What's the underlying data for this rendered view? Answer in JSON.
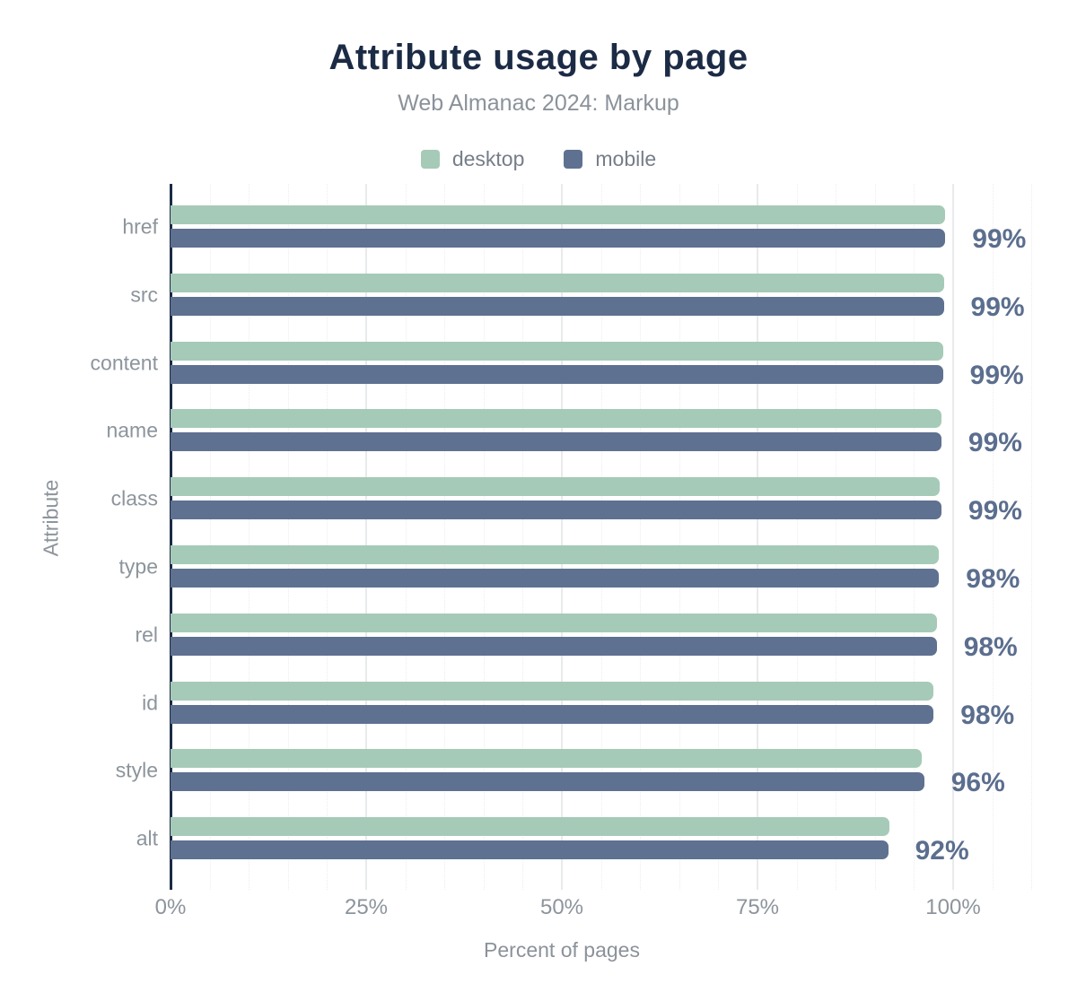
{
  "header": {
    "title": "Attribute usage by page",
    "subtitle": "Web Almanac 2024: Markup"
  },
  "legend": [
    {
      "label": "desktop",
      "color": "#a6cab8"
    },
    {
      "label": "mobile",
      "color": "#5f7190"
    }
  ],
  "chart_data": {
    "type": "bar",
    "orientation": "horizontal",
    "title": "Attribute usage by page",
    "subtitle": "Web Almanac 2024: Markup",
    "xlabel": "Percent of pages",
    "ylabel": "Attribute",
    "xlim": [
      0,
      100
    ],
    "x_tick_labels": [
      "0%",
      "25%",
      "50%",
      "75%",
      "100%"
    ],
    "x_tick_values": [
      0,
      25,
      50,
      75,
      100
    ],
    "grid": "vertical; dotted minor lines every 5%, light solid major lines every 25%",
    "legend_position": "top",
    "categories": [
      "href",
      "src",
      "content",
      "name",
      "class",
      "type",
      "rel",
      "id",
      "style",
      "alt"
    ],
    "series": [
      {
        "name": "desktop",
        "color": "#a6cab8",
        "values": [
          99.0,
          98.8,
          98.7,
          98.5,
          98.3,
          98.2,
          97.9,
          97.5,
          96.0,
          91.9
        ]
      },
      {
        "name": "mobile",
        "color": "#5f7190",
        "values": [
          99.0,
          98.8,
          98.7,
          98.5,
          98.5,
          98.2,
          97.9,
          97.5,
          96.3,
          91.7
        ]
      }
    ],
    "value_labels": [
      "99%",
      "99%",
      "99%",
      "99%",
      "99%",
      "98%",
      "98%",
      "98%",
      "96%",
      "92%"
    ]
  },
  "colors": {
    "title": "#1c2b45",
    "axis_line": "#1c2b45",
    "value_label": "#5b6e8e",
    "tick_text": "#8d949c",
    "minor_grid": "#ededed",
    "major_grid": "#e8eaec",
    "background": "#ffffff"
  }
}
